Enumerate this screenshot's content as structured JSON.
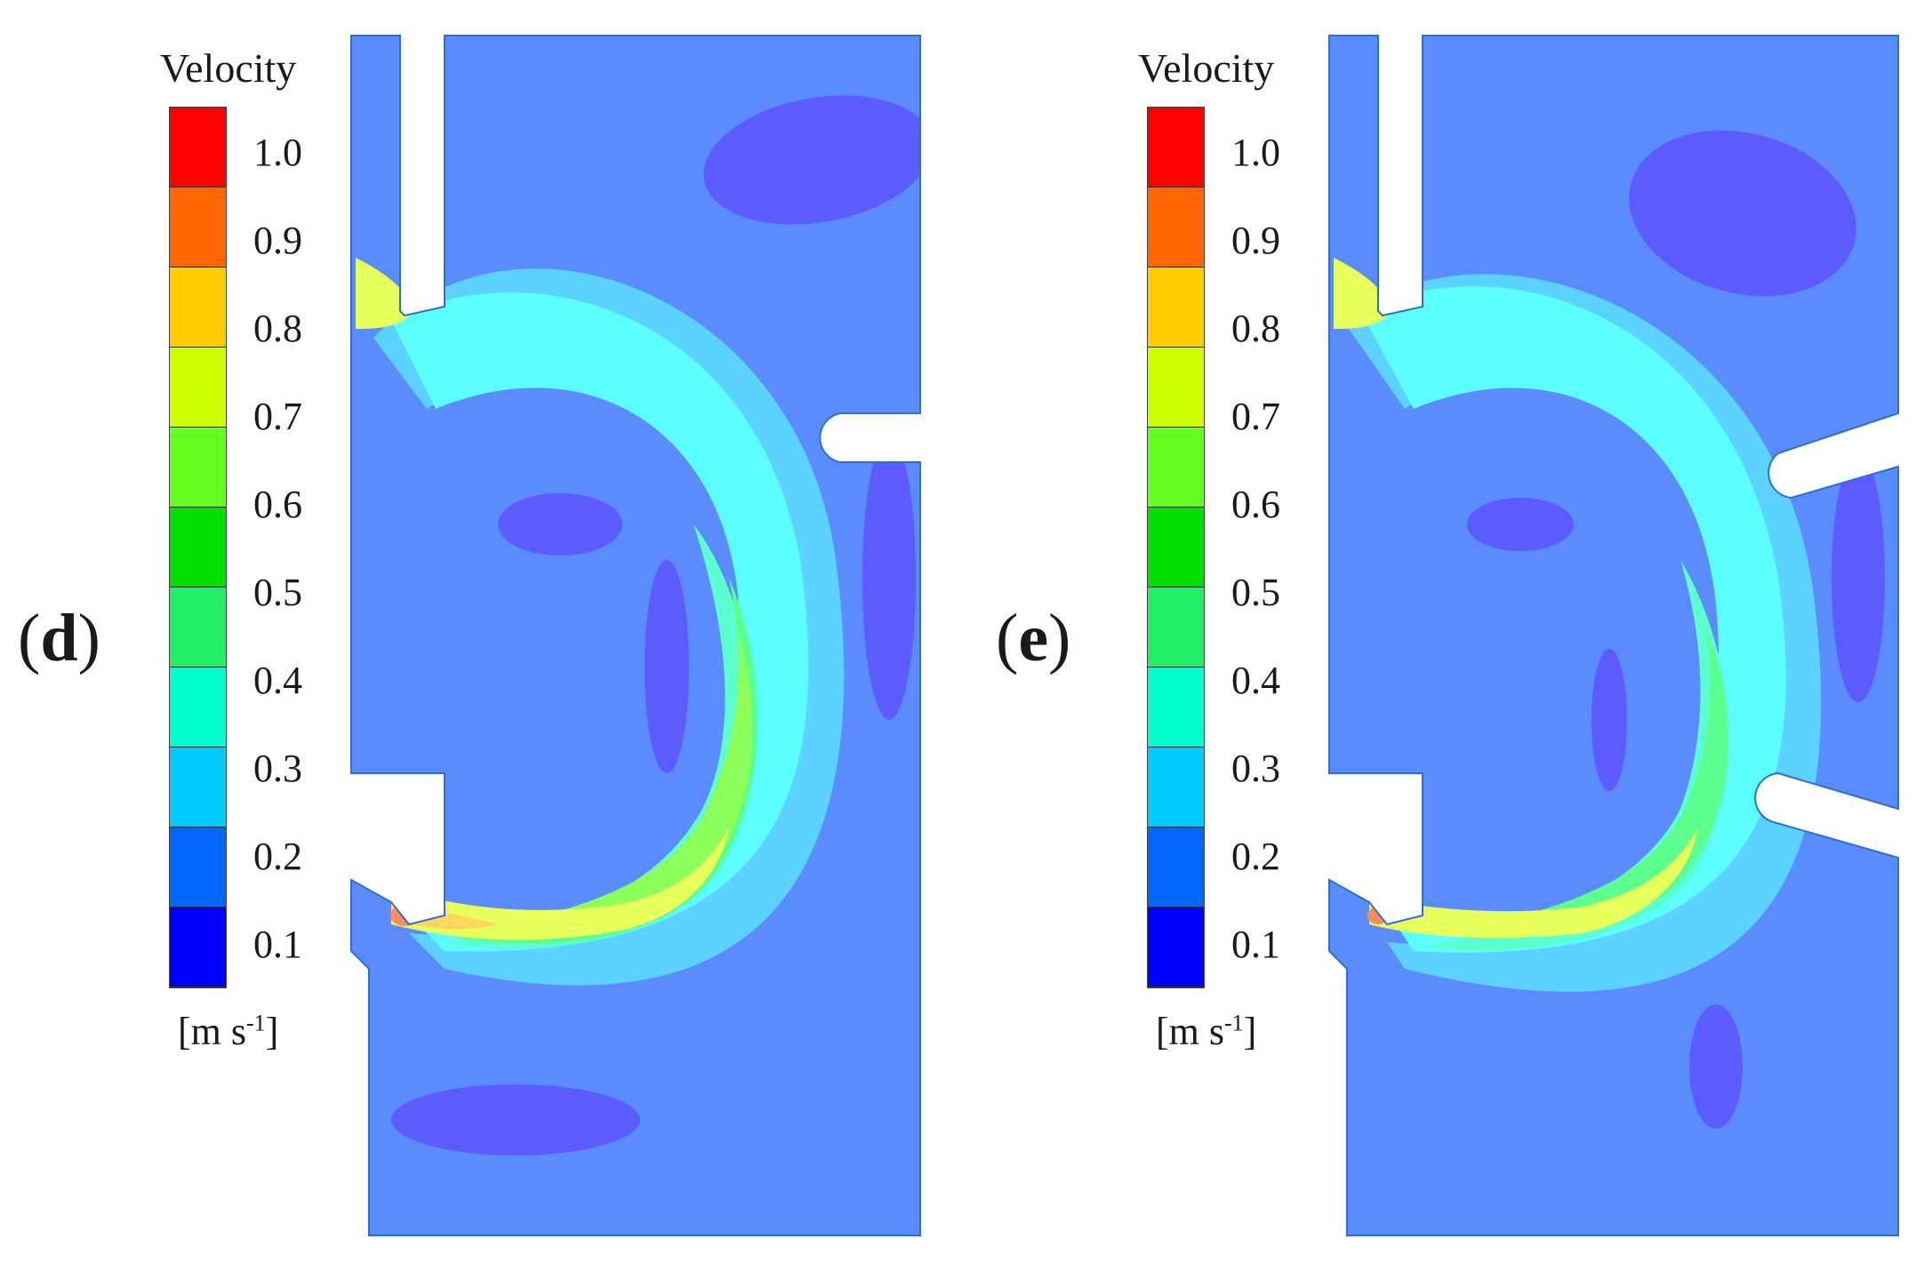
{
  "panels": [
    {
      "label": "d",
      "legend_title": "Velocity",
      "units_main": "[m s",
      "units_sup": "-1",
      "units_close": "]",
      "ticks": [
        "1.0",
        "0.9",
        "0.8",
        "0.7",
        "0.6",
        "0.5",
        "0.4",
        "0.3",
        "0.2",
        "0.1"
      ]
    },
    {
      "label": "e",
      "legend_title": "Velocity",
      "units_main": "[m s",
      "units_sup": "-1",
      "units_close": "]",
      "ticks": [
        "1.0",
        "0.9",
        "0.8",
        "0.7",
        "0.6",
        "0.5",
        "0.4",
        "0.3",
        "0.2",
        "0.1"
      ]
    }
  ],
  "colormap": [
    "#ff0000",
    "#ff6600",
    "#ffcc00",
    "#ccff00",
    "#66ff22",
    "#00e000",
    "#22ee66",
    "#00ffcc",
    "#00ccff",
    "#0066ff",
    "#0000ff"
  ],
  "field_colors": {
    "low": "#5b5bff",
    "mid_low": "#5b8cff",
    "mid": "#5bd2ff",
    "cyan": "#5bffff",
    "aqua": "#5bffd0",
    "green": "#5bff8c",
    "lime": "#8cff5b",
    "yellow": "#e6ff5b",
    "amber": "#ffd75b",
    "orange": "#ff8c5b",
    "outline": "#2a6fd6"
  }
}
